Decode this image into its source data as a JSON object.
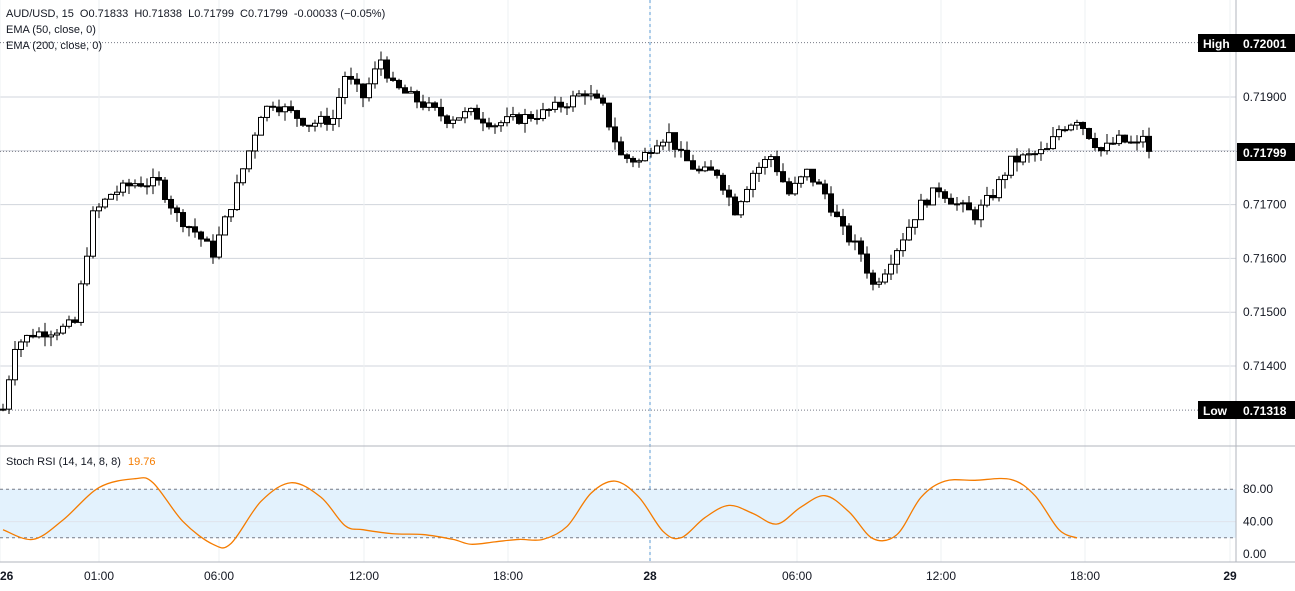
{
  "legend": {
    "symbol": "AUD/USD, 15",
    "open": "O0.71833",
    "high": "H0.71838",
    "low": "L0.71799",
    "close": "C0.71799",
    "change": "-0.00033 (−0.05%)",
    "ema1": "EMA (50, close, 0)",
    "ema2": "EMA (200, close, 0)"
  },
  "price_axis": {
    "high_label": "High",
    "high_value": "0.72001",
    "low_label": "Low",
    "low_value": "0.71318",
    "current_value": "0.71799"
  },
  "oscillator": {
    "title": "Stoch RSI (14, 14, 8, 8)",
    "value": "19.76",
    "band_upper": 80,
    "band_lower": 20,
    "color": "#f57c00"
  },
  "colors": {
    "up_candle": "#ffffff",
    "down_candle": "#000000",
    "grid": "#d1d4dc",
    "band_fill": "#e3f2fd",
    "crosshair": "#5b9bd5"
  },
  "chart_data": [
    {
      "type": "candlestick",
      "series_name": "AUD/USD",
      "interval": "15",
      "ylim": [
        0.7127,
        0.7205
      ],
      "y_ticks": [
        "0.71400",
        "0.71500",
        "0.71600",
        "0.71700",
        "0.71800",
        "0.71900"
      ],
      "x_ticks": [
        "26",
        "01:00",
        "06:00",
        "12:00",
        "18:00",
        "28",
        "06:00",
        "12:00",
        "18:00",
        "29"
      ],
      "high": 0.72001,
      "low": 0.71318,
      "last": 0.71799,
      "close_path": [
        [
          0,
          0.7132
        ],
        [
          2,
          0.7144
        ],
        [
          5,
          0.7146
        ],
        [
          10,
          0.7147
        ],
        [
          12,
          0.7148
        ],
        [
          15,
          0.7168
        ],
        [
          18,
          0.7172
        ],
        [
          22,
          0.7174
        ],
        [
          26,
          0.7174
        ],
        [
          29,
          0.7168
        ],
        [
          32,
          0.7165
        ],
        [
          35,
          0.7161
        ],
        [
          38,
          0.717
        ],
        [
          41,
          0.718
        ],
        [
          43,
          0.7187
        ],
        [
          45,
          0.7189
        ],
        [
          48,
          0.7187
        ],
        [
          51,
          0.7185
        ],
        [
          55,
          0.7186
        ],
        [
          57,
          0.7194
        ],
        [
          60,
          0.719
        ],
        [
          63,
          0.7197
        ],
        [
          65,
          0.7192
        ],
        [
          68,
          0.719
        ],
        [
          71,
          0.7188
        ],
        [
          74,
          0.7186
        ],
        [
          78,
          0.7187
        ],
        [
          82,
          0.7185
        ],
        [
          86,
          0.7186
        ],
        [
          90,
          0.7187
        ],
        [
          94,
          0.7189
        ],
        [
          97,
          0.7191
        ],
        [
          100,
          0.7188
        ],
        [
          103,
          0.7179
        ],
        [
          106,
          0.7178
        ],
        [
          109,
          0.7182
        ],
        [
          111,
          0.7183
        ],
        [
          113,
          0.7179
        ],
        [
          116,
          0.7176
        ],
        [
          119,
          0.7176
        ],
        [
          122,
          0.7169
        ],
        [
          125,
          0.7176
        ],
        [
          128,
          0.7179
        ],
        [
          131,
          0.7172
        ],
        [
          134,
          0.7176
        ],
        [
          137,
          0.7172
        ],
        [
          140,
          0.7165
        ],
        [
          143,
          0.7161
        ],
        [
          145,
          0.7155
        ],
        [
          147,
          0.7158
        ],
        [
          150,
          0.7164
        ],
        [
          153,
          0.717
        ],
        [
          156,
          0.7173
        ],
        [
          159,
          0.717
        ],
        [
          162,
          0.7168
        ],
        [
          165,
          0.7172
        ],
        [
          168,
          0.7178
        ],
        [
          171,
          0.7179
        ],
        [
          174,
          0.718
        ],
        [
          176,
          0.7184
        ],
        [
          179,
          0.7186
        ],
        [
          181,
          0.7183
        ],
        [
          183,
          0.718
        ],
        [
          186,
          0.7182
        ],
        [
          189,
          0.7181
        ],
        [
          190,
          0.7183
        ],
        [
          191,
          0.71799
        ]
      ]
    },
    {
      "type": "line",
      "series_name": "Stoch RSI (14, 14, 8, 8)",
      "ylim": [
        0,
        100
      ],
      "y_ticks": [
        "0.00",
        "40.00",
        "80.00"
      ],
      "points": [
        [
          0,
          30
        ],
        [
          5,
          18
        ],
        [
          10,
          42
        ],
        [
          16,
          82
        ],
        [
          22,
          93
        ],
        [
          25,
          88
        ],
        [
          30,
          40
        ],
        [
          35,
          12
        ],
        [
          38,
          13
        ],
        [
          43,
          65
        ],
        [
          48,
          88
        ],
        [
          53,
          70
        ],
        [
          57,
          35
        ],
        [
          60,
          30
        ],
        [
          65,
          25
        ],
        [
          70,
          24
        ],
        [
          75,
          18
        ],
        [
          78,
          12
        ],
        [
          82,
          15
        ],
        [
          86,
          18
        ],
        [
          90,
          18
        ],
        [
          94,
          34
        ],
        [
          98,
          75
        ],
        [
          102,
          90
        ],
        [
          106,
          70
        ],
        [
          110,
          28
        ],
        [
          113,
          20
        ],
        [
          117,
          45
        ],
        [
          121,
          60
        ],
        [
          125,
          50
        ],
        [
          129,
          37
        ],
        [
          133,
          58
        ],
        [
          137,
          72
        ],
        [
          141,
          52
        ],
        [
          145,
          19
        ],
        [
          149,
          24
        ],
        [
          153,
          70
        ],
        [
          157,
          90
        ],
        [
          162,
          91
        ],
        [
          168,
          92
        ],
        [
          172,
          72
        ],
        [
          176,
          30
        ],
        [
          179,
          19.76
        ]
      ]
    }
  ]
}
